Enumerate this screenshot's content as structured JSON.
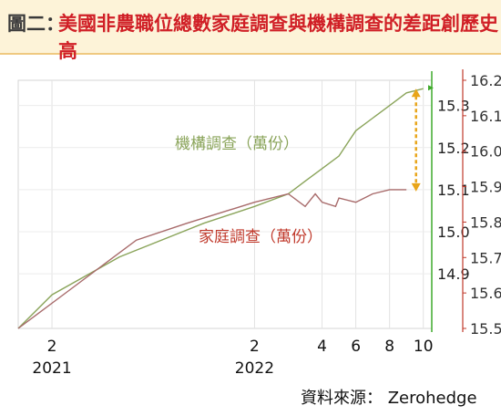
{
  "header": {
    "title_lead": "圖二：",
    "title_rest": "美國非農職位總數家庭調查與機構調查的差距創歷史高"
  },
  "source": "資料來源： Zerohedge",
  "chart_data": {
    "type": "line",
    "x_ticks": [
      {
        "i": 2,
        "lines": [
          "2",
          "2021"
        ]
      },
      {
        "i": 14,
        "lines": [
          "2",
          "2022"
        ]
      },
      {
        "i": 18,
        "lines": [
          "4"
        ]
      },
      {
        "i": 20,
        "lines": [
          "6"
        ]
      },
      {
        "i": 22,
        "lines": [
          "8"
        ]
      },
      {
        "i": 24,
        "lines": [
          "10"
        ]
      }
    ],
    "y_left": {
      "ticks": [
        "14.9",
        "15.0",
        "15.1",
        "15.2",
        "15.3"
      ],
      "range": [
        14.77,
        15.36
      ]
    },
    "y_right": {
      "ticks": [
        "15.5",
        "15.6",
        "15.7",
        "15.8",
        "15.9",
        "16.0",
        "16.1",
        "16.2"
      ],
      "range": [
        15.5,
        16.2
      ]
    },
    "x_range": [
      0,
      24.5
    ],
    "series": [
      {
        "name": "機構調查（萬份）",
        "axis": "left",
        "color": "#8aa45a",
        "points": [
          [
            0,
            14.77
          ],
          [
            2,
            14.85
          ],
          [
            6,
            14.94
          ],
          [
            11,
            15.02
          ],
          [
            14,
            15.06
          ],
          [
            16,
            15.09
          ],
          [
            17,
            15.12
          ],
          [
            18,
            15.15
          ],
          [
            19,
            15.18
          ],
          [
            20,
            15.24
          ],
          [
            21,
            15.27
          ],
          [
            22,
            15.3
          ],
          [
            23,
            15.33
          ],
          [
            24,
            15.34
          ]
        ]
      },
      {
        "name": "家庭調查（萬份）",
        "axis": "left",
        "color": "#a86b6b",
        "points": [
          [
            0,
            14.77
          ],
          [
            1,
            14.8
          ],
          [
            3,
            14.86
          ],
          [
            7,
            14.98
          ],
          [
            10,
            15.02
          ],
          [
            14,
            15.07
          ],
          [
            16,
            15.09
          ],
          [
            17,
            15.06
          ],
          [
            17.6,
            15.09
          ],
          [
            18,
            15.07
          ],
          [
            18.8,
            15.06
          ],
          [
            19,
            15.08
          ],
          [
            20,
            15.07
          ],
          [
            21,
            15.09
          ],
          [
            22,
            15.1
          ],
          [
            23,
            15.1
          ]
        ]
      }
    ],
    "annotations": [
      "機構調查（萬份）",
      "家庭調查（萬份）"
    ],
    "gap_arrow": {
      "x": 24,
      "from": 15.34,
      "to": 15.1,
      "color": "#e8a51a"
    },
    "colors": {
      "left_axis": "#8aa45a",
      "right_axis": "#c0392b",
      "vline": "#3faa2b"
    }
  }
}
